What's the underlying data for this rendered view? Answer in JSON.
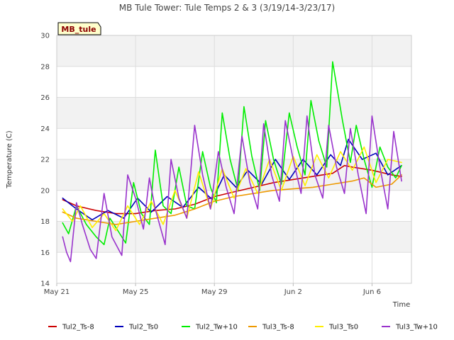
{
  "chart_data": {
    "type": "line",
    "title": "MB Tule Tower: Tule Temps 2 & 3 (3/19/14-3/23/17)",
    "xlabel": "Time",
    "ylabel": "Temperature (C)",
    "badge": "MB_tule",
    "ylim": [
      14,
      30
    ],
    "yticks": [
      14,
      16,
      18,
      20,
      22,
      24,
      26,
      28,
      30
    ],
    "xlim": [
      0,
      18
    ],
    "xticks": [
      {
        "value": 0,
        "label": "May 21"
      },
      {
        "value": 4,
        "label": "May 25"
      },
      {
        "value": 8,
        "label": "May 29"
      },
      {
        "value": 12,
        "label": "Jun 2"
      },
      {
        "value": 16,
        "label": "Jun 6"
      }
    ],
    "grid": true,
    "legend_position": "bottom",
    "series": [
      {
        "name": "Tul2_Ts-8",
        "color": "#cc0000",
        "points": [
          [
            0.3,
            19.4
          ],
          [
            1,
            19.0
          ],
          [
            2,
            18.7
          ],
          [
            3,
            18.5
          ],
          [
            4,
            18.5
          ],
          [
            5,
            18.7
          ],
          [
            6,
            18.8
          ],
          [
            7,
            19.1
          ],
          [
            8,
            19.6
          ],
          [
            9,
            19.9
          ],
          [
            10,
            20.2
          ],
          [
            11,
            20.5
          ],
          [
            12,
            20.7
          ],
          [
            13,
            20.9
          ],
          [
            14,
            21.1
          ],
          [
            14.6,
            21.6
          ],
          [
            15,
            21.5
          ],
          [
            16,
            21.3
          ],
          [
            17,
            21.0
          ],
          [
            17.5,
            20.9
          ]
        ]
      },
      {
        "name": "Tul2_Ts0",
        "color": "#0000bb",
        "points": [
          [
            0.3,
            19.5
          ],
          [
            1,
            18.8
          ],
          [
            1.8,
            18.1
          ],
          [
            2.6,
            18.7
          ],
          [
            3.4,
            18.2
          ],
          [
            4.1,
            19.5
          ],
          [
            4.8,
            18.6
          ],
          [
            5.6,
            19.6
          ],
          [
            6.4,
            18.9
          ],
          [
            7.2,
            20.2
          ],
          [
            7.9,
            19.4
          ],
          [
            8.5,
            21.0
          ],
          [
            9.1,
            20.2
          ],
          [
            9.7,
            21.3
          ],
          [
            10.4,
            20.4
          ],
          [
            11.1,
            22.0
          ],
          [
            11.8,
            20.7
          ],
          [
            12.5,
            22.0
          ],
          [
            13.2,
            21.0
          ],
          [
            13.9,
            22.3
          ],
          [
            14.4,
            21.6
          ],
          [
            14.8,
            23.3
          ],
          [
            15.5,
            22.0
          ],
          [
            16.2,
            22.4
          ],
          [
            16.8,
            21.0
          ],
          [
            17.5,
            21.6
          ]
        ]
      },
      {
        "name": "Tul2_Tw+10",
        "color": "#00ee00",
        "points": [
          [
            0.3,
            17.9
          ],
          [
            0.6,
            17.2
          ],
          [
            1,
            19.0
          ],
          [
            1.5,
            17.8
          ],
          [
            2,
            17.0
          ],
          [
            2.4,
            16.5
          ],
          [
            2.7,
            18.2
          ],
          [
            3.2,
            17.2
          ],
          [
            3.5,
            16.6
          ],
          [
            3.9,
            20.5
          ],
          [
            4.3,
            18.5
          ],
          [
            4.7,
            17.8
          ],
          [
            5.0,
            22.6
          ],
          [
            5.4,
            19.0
          ],
          [
            5.8,
            18.5
          ],
          [
            6.2,
            21.5
          ],
          [
            6.6,
            19.0
          ],
          [
            7.0,
            18.8
          ],
          [
            7.4,
            22.5
          ],
          [
            7.8,
            20.2
          ],
          [
            8.1,
            19.2
          ],
          [
            8.4,
            25.0
          ],
          [
            8.8,
            22.0
          ],
          [
            9.2,
            20.0
          ],
          [
            9.5,
            25.4
          ],
          [
            9.9,
            22.2
          ],
          [
            10.3,
            20.0
          ],
          [
            10.6,
            24.5
          ],
          [
            11.0,
            22.0
          ],
          [
            11.4,
            20.4
          ],
          [
            11.8,
            25.0
          ],
          [
            12.2,
            22.8
          ],
          [
            12.6,
            21.0
          ],
          [
            12.9,
            25.8
          ],
          [
            13.3,
            23.2
          ],
          [
            13.7,
            21.5
          ],
          [
            14.0,
            28.3
          ],
          [
            14.5,
            24.5
          ],
          [
            14.9,
            21.8
          ],
          [
            15.2,
            24.2
          ],
          [
            15.6,
            22.0
          ],
          [
            16.0,
            20.2
          ],
          [
            16.4,
            22.8
          ],
          [
            16.8,
            21.5
          ],
          [
            17.2,
            20.8
          ],
          [
            17.5,
            21.6
          ]
        ]
      },
      {
        "name": "Tul3_Ts-8",
        "color": "#ee9900",
        "points": [
          [
            0.3,
            18.6
          ],
          [
            1,
            18.2
          ],
          [
            2,
            18.0
          ],
          [
            3,
            17.8
          ],
          [
            4,
            18.0
          ],
          [
            5,
            18.2
          ],
          [
            6,
            18.4
          ],
          [
            7,
            18.8
          ],
          [
            8,
            19.3
          ],
          [
            9,
            19.6
          ],
          [
            10,
            19.8
          ],
          [
            11,
            20.0
          ],
          [
            12,
            20.1
          ],
          [
            13,
            20.2
          ],
          [
            14,
            20.4
          ],
          [
            15,
            20.6
          ],
          [
            15.6,
            20.8
          ],
          [
            16.2,
            20.2
          ],
          [
            17,
            20.4
          ],
          [
            17.5,
            21.0
          ]
        ]
      },
      {
        "name": "Tul3_Ts0",
        "color": "#ffee00",
        "points": [
          [
            0.3,
            18.8
          ],
          [
            0.8,
            18.0
          ],
          [
            1.2,
            19.0
          ],
          [
            1.8,
            17.6
          ],
          [
            2.4,
            18.5
          ],
          [
            3.0,
            17.4
          ],
          [
            3.6,
            19.0
          ],
          [
            4.2,
            17.8
          ],
          [
            4.8,
            19.3
          ],
          [
            5.4,
            17.8
          ],
          [
            6.0,
            20.0
          ],
          [
            6.6,
            18.2
          ],
          [
            7.2,
            21.2
          ],
          [
            7.8,
            18.8
          ],
          [
            8.4,
            21.4
          ],
          [
            9.0,
            19.5
          ],
          [
            9.6,
            21.4
          ],
          [
            10.2,
            19.8
          ],
          [
            10.8,
            22.0
          ],
          [
            11.4,
            20.0
          ],
          [
            12.0,
            22.2
          ],
          [
            12.6,
            20.3
          ],
          [
            13.2,
            22.3
          ],
          [
            13.8,
            20.8
          ],
          [
            14.4,
            22.5
          ],
          [
            15.0,
            21.3
          ],
          [
            15.6,
            22.8
          ],
          [
            16.2,
            20.5
          ],
          [
            16.8,
            22.0
          ],
          [
            17.5,
            21.8
          ]
        ]
      },
      {
        "name": "Tul3_Tw+10",
        "color": "#9933cc",
        "points": [
          [
            0.3,
            17.0
          ],
          [
            0.5,
            16.0
          ],
          [
            0.7,
            15.4
          ],
          [
            1.0,
            19.2
          ],
          [
            1.3,
            17.8
          ],
          [
            1.7,
            16.2
          ],
          [
            2.0,
            15.6
          ],
          [
            2.4,
            19.8
          ],
          [
            2.8,
            17.0
          ],
          [
            3.3,
            15.8
          ],
          [
            3.6,
            21.0
          ],
          [
            4.0,
            19.5
          ],
          [
            4.4,
            17.5
          ],
          [
            4.7,
            20.8
          ],
          [
            5.0,
            18.8
          ],
          [
            5.5,
            16.5
          ],
          [
            5.8,
            22.0
          ],
          [
            6.2,
            19.5
          ],
          [
            6.6,
            18.2
          ],
          [
            7.0,
            24.2
          ],
          [
            7.4,
            21.0
          ],
          [
            7.8,
            18.8
          ],
          [
            8.2,
            22.5
          ],
          [
            8.6,
            20.2
          ],
          [
            9.0,
            18.5
          ],
          [
            9.4,
            23.5
          ],
          [
            9.8,
            20.5
          ],
          [
            10.2,
            18.8
          ],
          [
            10.5,
            24.3
          ],
          [
            10.9,
            21.0
          ],
          [
            11.3,
            19.3
          ],
          [
            11.6,
            24.5
          ],
          [
            12.0,
            22.0
          ],
          [
            12.4,
            19.8
          ],
          [
            12.7,
            24.8
          ],
          [
            13.1,
            21.0
          ],
          [
            13.5,
            19.5
          ],
          [
            13.8,
            24.2
          ],
          [
            14.2,
            21.5
          ],
          [
            14.6,
            19.8
          ],
          [
            14.9,
            24.0
          ],
          [
            15.3,
            21.0
          ],
          [
            15.7,
            18.5
          ],
          [
            16.0,
            24.8
          ],
          [
            16.4,
            21.5
          ],
          [
            16.8,
            18.8
          ],
          [
            17.1,
            23.8
          ],
          [
            17.5,
            20.6
          ]
        ]
      }
    ]
  }
}
